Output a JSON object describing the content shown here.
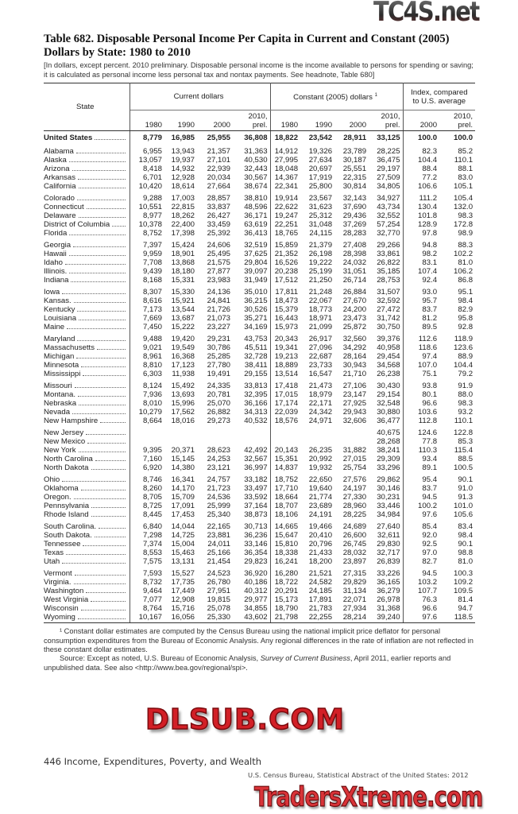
{
  "title": "Table 682. Disposable Personal Income Per Capita in Current and Constant (2005) Dollars by State: 1980 to 2010",
  "headnote": "[In dollars, except percent. 2010 preliminary. Disposable personal income is the income available to persons for spending or saving; it is calculated as personal income less personal tax and nontax payments. See headnote, Table 680]",
  "table": {
    "state_header": "State",
    "groups": [
      {
        "label": "Current dollars",
        "footnote": ""
      },
      {
        "label": "Constant (2005) dollars",
        "footnote": "1"
      },
      {
        "label": "Index, compared to U.S. average",
        "footnote": ""
      }
    ],
    "columns": [
      "1980",
      "1990",
      "2000",
      "2010, prel.",
      "1980",
      "1990",
      "2000",
      "2010, prel.",
      "2000",
      "2010, prel."
    ],
    "us_row": [
      "United States",
      "8,779",
      "16,985",
      "25,955",
      "36,808",
      "18,822",
      "23,542",
      "28,911",
      "33,125",
      "100.0",
      "100.0"
    ],
    "row_groups": [
      [
        [
          "Alabama",
          "6,955",
          "13,943",
          "21,357",
          "31,363",
          "14,912",
          "19,326",
          "23,789",
          "28,225",
          "82.3",
          "85.2"
        ],
        [
          "Alaska",
          "13,057",
          "19,937",
          "27,101",
          "40,530",
          "27,995",
          "27,634",
          "30,187",
          "36,475",
          "104.4",
          "110.1"
        ],
        [
          "Arizona",
          "8,418",
          "14,932",
          "22,939",
          "32,443",
          "18,048",
          "20,697",
          "25,551",
          "29,197",
          "88.4",
          "88.1"
        ],
        [
          "Arkansas",
          "6,701",
          "12,928",
          "20,034",
          "30,567",
          "14,367",
          "17,919",
          "22,315",
          "27,509",
          "77.2",
          "83.0"
        ],
        [
          "California",
          "10,420",
          "18,614",
          "27,664",
          "38,674",
          "22,341",
          "25,800",
          "30,814",
          "34,805",
          "106.6",
          "105.1"
        ]
      ],
      [
        [
          "Colorado",
          "9,288",
          "17,003",
          "28,857",
          "38,810",
          "19,914",
          "23,567",
          "32,143",
          "34,927",
          "111.2",
          "105.4"
        ],
        [
          "Connecticut",
          "10,551",
          "22,815",
          "33,837",
          "48,596",
          "22,622",
          "31,623",
          "37,690",
          "43,734",
          "130.4",
          "132.0"
        ],
        [
          "Delaware",
          "8,977",
          "18,262",
          "26,427",
          "36,171",
          "19,247",
          "25,312",
          "29,436",
          "32,552",
          "101.8",
          "98.3"
        ],
        [
          "District of Columbia",
          "10,378",
          "22,400",
          "33,459",
          "63,619",
          "22,251",
          "31,048",
          "37,269",
          "57,254",
          "128.9",
          "172.8"
        ],
        [
          "Florida",
          "8,752",
          "17,398",
          "25,392",
          "36,413",
          "18,765",
          "24,115",
          "28,283",
          "32,770",
          "97.8",
          "98.9"
        ]
      ],
      [
        [
          "Georgia",
          "7,397",
          "15,424",
          "24,606",
          "32,519",
          "15,859",
          "21,379",
          "27,408",
          "29,266",
          "94.8",
          "88.3"
        ],
        [
          "Hawaii",
          "9,959",
          "18,901",
          "25,495",
          "37,625",
          "21,352",
          "26,198",
          "28,398",
          "33,861",
          "98.2",
          "102.2"
        ],
        [
          "Idaho",
          "7,708",
          "13,868",
          "21,575",
          "29,804",
          "16,526",
          "19,222",
          "24,032",
          "26,822",
          "83.1",
          "81.0"
        ],
        [
          "Illinois.",
          "9,439",
          "18,180",
          "27,877",
          "39,097",
          "20,238",
          "25,199",
          "31,051",
          "35,185",
          "107.4",
          "106.2"
        ],
        [
          "Indiana",
          "8,168",
          "15,331",
          "23,983",
          "31,949",
          "17,512",
          "21,250",
          "26,714",
          "28,753",
          "92.4",
          "86.8"
        ]
      ],
      [
        [
          "Iowa",
          "8,307",
          "15,330",
          "24,136",
          "35,010",
          "17,811",
          "21,248",
          "26,884",
          "31,507",
          "93.0",
          "95.1"
        ],
        [
          "Kansas.",
          "8,616",
          "15,921",
          "24,841",
          "36,215",
          "18,473",
          "22,067",
          "27,670",
          "32,592",
          "95.7",
          "98.4"
        ],
        [
          "Kentucky",
          "7,173",
          "13,544",
          "21,726",
          "30,526",
          "15,379",
          "18,773",
          "24,200",
          "27,472",
          "83.7",
          "82.9"
        ],
        [
          "Louisiana",
          "7,669",
          "13,687",
          "21,073",
          "35,271",
          "16,443",
          "18,971",
          "23,473",
          "31,742",
          "81.2",
          "95.8"
        ],
        [
          "Maine",
          "7,450",
          "15,222",
          "23,227",
          "34,169",
          "15,973",
          "21,099",
          "25,872",
          "30,750",
          "89.5",
          "92.8"
        ]
      ],
      [
        [
          "Maryland",
          "9,488",
          "19,420",
          "29,231",
          "43,753",
          "20,343",
          "26,917",
          "32,560",
          "39,376",
          "112.6",
          "118.9"
        ],
        [
          "Massachusetts",
          "9,021",
          "19,549",
          "30,786",
          "45,511",
          "19,341",
          "27,096",
          "34,292",
          "40,958",
          "118.6",
          "123.6"
        ],
        [
          "Michigan",
          "8,961",
          "16,368",
          "25,285",
          "32,728",
          "19,213",
          "22,687",
          "28,164",
          "29,454",
          "97.4",
          "88.9"
        ],
        [
          "Minnesota",
          "8,810",
          "17,123",
          "27,780",
          "38,411",
          "18,889",
          "23,733",
          "30,943",
          "34,568",
          "107.0",
          "104.4"
        ],
        [
          "Mississippi",
          "6,303",
          "11,938",
          "19,491",
          "29,155",
          "13,514",
          "16,547",
          "21,710",
          "26,238",
          "75.1",
          "79.2"
        ]
      ],
      [
        [
          "Missouri",
          "8,124",
          "15,492",
          "24,335",
          "33,813",
          "17,418",
          "21,473",
          "27,106",
          "30,430",
          "93.8",
          "91.9"
        ],
        [
          "Montana.",
          "7,936",
          "13,693",
          "20,781",
          "32,395",
          "17,015",
          "18,979",
          "23,147",
          "29,154",
          "80.1",
          "88.0"
        ],
        [
          "Nebraska",
          "8,010",
          "15,996",
          "25,070",
          "36,166",
          "17,174",
          "22,171",
          "27,925",
          "32,548",
          "96.6",
          "98.3"
        ],
        [
          "Nevada",
          "10,279",
          "17,562",
          "26,882",
          "34,313",
          "22,039",
          "24,342",
          "29,943",
          "30,880",
          "103.6",
          "93.2"
        ],
        [
          "New Hampshire",
          "8,664",
          "18,016",
          "29,273",
          "40,532",
          "18,576",
          "24,971",
          "32,606",
          "36,477",
          "112.8",
          "110.1"
        ]
      ],
      [
        [
          "New Jersey",
          "",
          "",
          "",
          "",
          "",
          "",
          "",
          "40,675",
          "124.6",
          "122.8"
        ],
        [
          "New Mexico",
          "",
          "",
          "",
          "",
          "",
          "",
          "",
          "28,268",
          "77.8",
          "85.3"
        ],
        [
          "New York",
          "9,395",
          "20,371",
          "28,623",
          "42,492",
          "20,143",
          "26,235",
          "31,882",
          "38,241",
          "110.3",
          "115.4"
        ],
        [
          "North Carolina",
          "7,160",
          "15,145",
          "24,253",
          "32,567",
          "15,351",
          "20,992",
          "27,015",
          "29,309",
          "93.4",
          "88.5"
        ],
        [
          "North Dakota",
          "6,920",
          "14,380",
          "23,121",
          "36,997",
          "14,837",
          "19,932",
          "25,754",
          "33,296",
          "89.1",
          "100.5"
        ]
      ],
      [
        [
          "Ohio",
          "8,746",
          "16,341",
          "24,757",
          "33,182",
          "18,752",
          "22,650",
          "27,576",
          "29,862",
          "95.4",
          "90.1"
        ],
        [
          "Oklahoma",
          "8,260",
          "14,170",
          "21,723",
          "33,497",
          "17,710",
          "19,640",
          "24,197",
          "30,146",
          "83.7",
          "91.0"
        ],
        [
          "Oregon.",
          "8,705",
          "15,709",
          "24,536",
          "33,592",
          "18,664",
          "21,774",
          "27,330",
          "30,231",
          "94.5",
          "91.3"
        ],
        [
          "Pennsylvania",
          "8,725",
          "17,091",
          "25,999",
          "37,164",
          "18,707",
          "23,689",
          "28,960",
          "33,446",
          "100.2",
          "101.0"
        ],
        [
          "Rhode Island",
          "8,445",
          "17,453",
          "25,340",
          "38,873",
          "18,106",
          "24,191",
          "28,225",
          "34,984",
          "97.6",
          "105.6"
        ]
      ],
      [
        [
          "South Carolina.",
          "6,840",
          "14,044",
          "22,165",
          "30,713",
          "14,665",
          "19,466",
          "24,689",
          "27,640",
          "85.4",
          "83.4"
        ],
        [
          "South Dakota.",
          "7,298",
          "14,725",
          "23,881",
          "36,236",
          "15,647",
          "20,410",
          "26,600",
          "32,611",
          "92.0",
          "98.4"
        ],
        [
          "Tennessee",
          "7,374",
          "15,004",
          "24,011",
          "33,146",
          "15,810",
          "20,796",
          "26,745",
          "29,830",
          "92.5",
          "90.1"
        ],
        [
          "Texas",
          "8,553",
          "15,463",
          "25,166",
          "36,354",
          "18,338",
          "21,433",
          "28,032",
          "32,717",
          "97.0",
          "98.8"
        ],
        [
          "Utah",
          "7,575",
          "13,131",
          "21,454",
          "29,823",
          "16,241",
          "18,200",
          "23,897",
          "26,839",
          "82.7",
          "81.0"
        ]
      ],
      [
        [
          "Vermont",
          "7,593",
          "15,527",
          "24,523",
          "36,920",
          "16,280",
          "21,521",
          "27,315",
          "33,226",
          "94.5",
          "100.3"
        ],
        [
          "Virginia.",
          "8,732",
          "17,735",
          "26,780",
          "40,186",
          "18,722",
          "24,582",
          "29,829",
          "36,165",
          "103.2",
          "109.2"
        ],
        [
          "Washington",
          "9,464",
          "17,449",
          "27,951",
          "40,312",
          "20,291",
          "24,185",
          "31,134",
          "36,279",
          "107.7",
          "109.5"
        ],
        [
          "West Virginia",
          "7,077",
          "12,908",
          "19,815",
          "29,977",
          "15,173",
          "17,891",
          "22,071",
          "26,978",
          "76.3",
          "81.4"
        ],
        [
          "Wisconsin",
          "8,764",
          "15,716",
          "25,078",
          "34,855",
          "18,790",
          "21,783",
          "27,934",
          "31,368",
          "96.6",
          "94.7"
        ],
        [
          "Wyoming",
          "10,167",
          "16,056",
          "25,330",
          "43,602",
          "21,798",
          "22,255",
          "28,214",
          "39,240",
          "97.6",
          "118.5"
        ]
      ]
    ]
  },
  "footnotes": {
    "note1": "¹ Constant dollar estimates are computed by the Census Bureau using the national implicit price deflator for personal consumption expenditures from the Bureau of Economic Analysis. Any regional differences in the rate of inflation are not reflected in these constant dollar estimates.",
    "source_prefix": "Source: Except as noted, U.S. Bureau of Economic Analysis, ",
    "source_italic": "Survey of Current Business",
    "source_suffix": ", April 2011, earlier reports and unpublished data. See also <http://www.bea.gov/regional/spi>."
  },
  "page_footer": {
    "left": "446  Income, Expenditures, Poverty, and Wealth",
    "right": "U.S. Census Bureau, Statistical Abstract of the United States: 2012"
  },
  "watermarks": {
    "top": "TC4S.net",
    "middle": "DLSUB.COM",
    "bottom": "TradersXtreme.com"
  }
}
